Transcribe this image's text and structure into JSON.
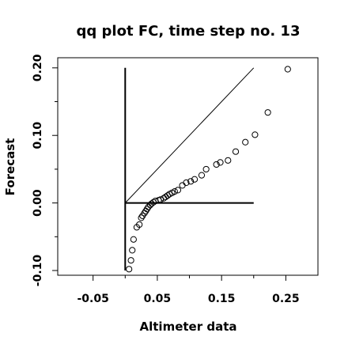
{
  "chart_data": {
    "type": "scatter",
    "title": "qq plot FC, time step no. 13",
    "xlabel": "Altimeter data",
    "ylabel": "Forecast",
    "xlim": [
      -0.105,
      0.3
    ],
    "ylim": [
      -0.107,
      0.215
    ],
    "x_ticks": [
      -0.05,
      0.05,
      0.15,
      0.25
    ],
    "x_tick_labels": [
      "-0.05",
      "0.05",
      "0.15",
      "0.25"
    ],
    "x_minor_ticks": [
      0.0,
      0.1,
      0.2
    ],
    "y_ticks": [
      -0.1,
      0.0,
      0.1,
      0.2
    ],
    "y_tick_labels": [
      "-0.10",
      "0.00",
      "0.10",
      "0.20"
    ],
    "y_minor_ticks": [
      -0.05,
      0.05,
      0.15
    ],
    "grid": false,
    "reference_lines": [
      {
        "kind": "diagonal",
        "x": [
          0.0,
          0.2
        ],
        "y": [
          0.0,
          0.2
        ]
      },
      {
        "kind": "horizontal",
        "x": [
          0.0,
          0.2
        ],
        "y": [
          0.0,
          0.0
        ]
      },
      {
        "kind": "vertical",
        "x": [
          0.0,
          0.0
        ],
        "y": [
          -0.1,
          0.2
        ]
      }
    ],
    "points": [
      [
        0.006,
        -0.098
      ],
      [
        0.009,
        -0.085
      ],
      [
        0.011,
        -0.07
      ],
      [
        0.013,
        -0.054
      ],
      [
        0.018,
        -0.036
      ],
      [
        0.022,
        -0.032
      ],
      [
        0.025,
        -0.022
      ],
      [
        0.027,
        -0.019
      ],
      [
        0.03,
        -0.015
      ],
      [
        0.032,
        -0.012
      ],
      [
        0.034,
        -0.009
      ],
      [
        0.036,
        -0.006
      ],
      [
        0.039,
        -0.003
      ],
      [
        0.041,
        -0.001
      ],
      [
        0.044,
        0.001
      ],
      [
        0.047,
        0.003
      ],
      [
        0.052,
        0.004
      ],
      [
        0.055,
        0.005
      ],
      [
        0.06,
        0.007
      ],
      [
        0.063,
        0.009
      ],
      [
        0.066,
        0.011
      ],
      [
        0.069,
        0.013
      ],
      [
        0.073,
        0.015
      ],
      [
        0.077,
        0.017
      ],
      [
        0.082,
        0.019
      ],
      [
        0.089,
        0.026
      ],
      [
        0.095,
        0.03
      ],
      [
        0.102,
        0.032
      ],
      [
        0.108,
        0.035
      ],
      [
        0.119,
        0.041
      ],
      [
        0.126,
        0.05
      ],
      [
        0.142,
        0.057
      ],
      [
        0.148,
        0.06
      ],
      [
        0.16,
        0.063
      ],
      [
        0.172,
        0.076
      ],
      [
        0.187,
        0.09
      ],
      [
        0.202,
        0.101
      ],
      [
        0.222,
        0.134
      ],
      [
        0.253,
        0.198
      ]
    ],
    "marker": "open-circle",
    "colors": {
      "foreground": "#000000",
      "background": "#ffffff"
    }
  }
}
